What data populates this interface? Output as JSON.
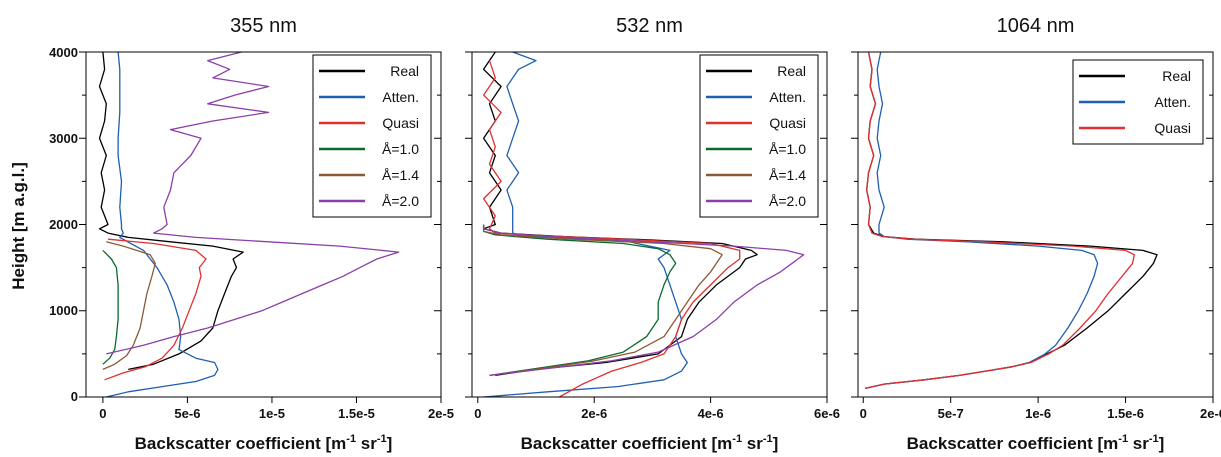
{
  "figure": {
    "ylabel": "Height [m a.g.l.]",
    "y_tick_labels": [
      "0",
      "1000",
      "2000",
      "3000",
      "4000"
    ]
  },
  "chart_data": [
    {
      "type": "line",
      "title": "355 nm",
      "xlabel_main": "Backscatter coefficient [m",
      "xlabel_sup1": "-1",
      "xlabel_mid": " sr",
      "xlabel_sup2": "-1",
      "xlabel_end": "]",
      "xlim": [
        -1e-06,
        2e-05
      ],
      "ylim": [
        0,
        4000
      ],
      "x_ticks": [
        0,
        5e-06,
        1e-05,
        1.5e-05,
        2e-05
      ],
      "x_tick_labels": [
        "0",
        "5e-6",
        "1e-5",
        "1.5e-5",
        "2e-5"
      ],
      "legend_position": "top-right",
      "series": [
        {
          "name": "Real",
          "color": "#000000",
          "y": [
            320,
            380,
            500,
            650,
            800,
            1000,
            1200,
            1400,
            1500,
            1600,
            1680,
            1750,
            1800,
            1850,
            1900,
            1950,
            2000,
            2200,
            2400,
            2600,
            2800,
            3000,
            3200,
            3400,
            3600,
            3800,
            4000
          ],
          "x": [
            1.5e-06,
            3e-06,
            4.5e-06,
            5.8e-06,
            6.5e-06,
            6.8e-06,
            7.2e-06,
            7.6e-06,
            7.9e-06,
            7.7e-06,
            8.3e-06,
            6.5e-06,
            4e-06,
            1.5e-06,
            3e-07,
            -2e-07,
            3e-07,
            -1e-07,
            1e-07,
            -1e-07,
            2e-07,
            -2e-07,
            1e-07,
            2e-07,
            -2e-07,
            1e-07,
            0
          ]
        },
        {
          "name": "Atten.",
          "color": "#1f5fb0",
          "y": [
            0,
            60,
            120,
            180,
            250,
            320,
            400,
            450,
            550,
            700,
            900,
            1100,
            1300,
            1500,
            1700,
            1850,
            1900,
            1950,
            2000,
            2200,
            2500,
            2800,
            3000,
            3300,
            3600,
            3800,
            4000
          ],
          "x": [
            2e-07,
            1.5e-06,
            3.5e-06,
            5.5e-06,
            6.6e-06,
            6.8e-06,
            6.6e-06,
            5.5e-06,
            4.5e-06,
            4.6e-06,
            4.5e-06,
            4.2e-06,
            3.8e-06,
            3.2e-06,
            2.4e-06,
            1e-06,
            1.2e-06,
            1.1e-06,
            1.1e-06,
            1e-06,
            1.1e-06,
            9e-07,
            9e-07,
            1e-06,
            1e-06,
            1e-06,
            9e-07
          ]
        },
        {
          "name": "Quasi",
          "color": "#e03030",
          "y": [
            200,
            280,
            350,
            450,
            600,
            800,
            1000,
            1200,
            1400,
            1500,
            1600,
            1700,
            1780,
            1830
          ],
          "x": [
            1e-07,
            1.2e-06,
            2.5e-06,
            3.5e-06,
            4.2e-06,
            4.7e-06,
            5.1e-06,
            5.5e-06,
            5.8e-06,
            5.7e-06,
            6.1e-06,
            5.5e-06,
            3e-06,
            3e-07
          ]
        },
        {
          "name": "Å=1.0",
          "color": "#0a6a2e",
          "y": [
            380,
            450,
            550,
            700,
            900,
            1100,
            1300,
            1500,
            1600,
            1700
          ],
          "x": [
            0,
            4e-07,
            7e-07,
            8e-07,
            9e-07,
            9e-07,
            9e-07,
            8e-07,
            5e-07,
            0
          ]
        },
        {
          "name": "Å=1.4",
          "color": "#8a5a35",
          "y": [
            320,
            380,
            480,
            600,
            800,
            1000,
            1200,
            1400,
            1550,
            1650,
            1750,
            1800
          ],
          "x": [
            0,
            7e-07,
            1.4e-06,
            1.8e-06,
            2.2e-06,
            2.4e-06,
            2.6e-06,
            2.9e-06,
            3.1e-06,
            2.8e-06,
            1.2e-06,
            2e-07
          ]
        },
        {
          "name": "Å=2.0",
          "color": "#8b3fa8",
          "y": [
            500,
            600,
            700,
            800,
            900,
            1000,
            1100,
            1200,
            1300,
            1400,
            1500,
            1600,
            1680,
            1750,
            1800,
            1850,
            1900,
            1950,
            2000,
            2200,
            2400,
            2600,
            2800,
            3000,
            3100,
            3200,
            3300,
            3400,
            3500,
            3600,
            3700,
            3800,
            3900,
            4000
          ],
          "x": [
            2e-07,
            2.4e-06,
            4.2e-06,
            6.2e-06,
            7.8e-06,
            9.4e-06,
            1.06e-05,
            1.18e-05,
            1.3e-05,
            1.42e-05,
            1.52e-05,
            1.62e-05,
            1.75e-05,
            1.4e-05,
            9.8e-06,
            5.5e-06,
            3e-06,
            3.5e-06,
            3.8e-06,
            3.6e-06,
            4e-06,
            4.2e-06,
            5.2e-06,
            5.8e-06,
            4e-06,
            6.5e-06,
            9.8e-06,
            6.2e-06,
            7.8e-06,
            9.8e-06,
            6.5e-06,
            7.5e-06,
            6.2e-06,
            8.2e-06
          ]
        }
      ]
    },
    {
      "type": "line",
      "title": "532 nm",
      "xlabel_main": "Backscatter coefficient [m",
      "xlabel_sup1": "-1",
      "xlabel_mid": " sr",
      "xlabel_sup2": "-1",
      "xlabel_end": "]",
      "xlim": [
        -1e-07,
        6e-06
      ],
      "ylim": [
        0,
        4000
      ],
      "x_ticks": [
        0,
        2e-06,
        4e-06,
        6e-06
      ],
      "x_tick_labels": [
        "0",
        "2e-6",
        "4e-6",
        "6e-6"
      ],
      "legend_position": "top-right",
      "series": [
        {
          "name": "Real",
          "color": "#000000",
          "y": [
            250,
            320,
            400,
            500,
            700,
            900,
            1100,
            1300,
            1500,
            1600,
            1650,
            1700,
            1780,
            1820,
            1860,
            1900,
            1950,
            2000,
            2200,
            2400,
            2600,
            2800,
            3000,
            3200,
            3400,
            3600,
            3800,
            4000
          ],
          "x": [
            3e-07,
            1e-06,
            2.2e-06,
            3.1e-06,
            3.5e-06,
            3.6e-06,
            3.8e-06,
            4.1e-06,
            4.5e-06,
            4.6e-06,
            4.8e-06,
            4.7e-06,
            4.2e-06,
            3e-06,
            1.5e-06,
            4e-07,
            1e-07,
            3e-07,
            2e-07,
            4e-07,
            2e-07,
            3e-07,
            1e-07,
            3e-07,
            2e-07,
            4e-07,
            1e-07,
            3e-07
          ]
        },
        {
          "name": "Atten.",
          "color": "#1f5fb0",
          "y": [
            0,
            60,
            120,
            200,
            300,
            400,
            500,
            700,
            900,
            1100,
            1300,
            1500,
            1600,
            1700,
            1800,
            1850,
            1880,
            1900,
            1950,
            2000,
            2200,
            2400,
            2600,
            2800,
            3000,
            3200,
            3400,
            3600,
            3800,
            3900,
            4000
          ],
          "x": [
            1e-07,
            1.2e-06,
            2.4e-06,
            3.2e-06,
            3.5e-06,
            3.6e-06,
            3.5e-06,
            3.4e-06,
            3.5e-06,
            3.4e-06,
            3.3e-06,
            3.2e-06,
            3.1e-06,
            3.3e-06,
            2.6e-06,
            1.4e-06,
            7e-07,
            6e-07,
            6e-07,
            6e-07,
            6e-07,
            5e-07,
            7e-07,
            5e-07,
            6e-07,
            7e-07,
            6e-07,
            5e-07,
            7e-07,
            1e-06,
            6e-07
          ]
        },
        {
          "name": "Quasi",
          "color": "#e03030",
          "y": [
            0,
            150,
            300,
            400,
            500,
            700,
            900,
            1100,
            1300,
            1500,
            1600,
            1700,
            1780,
            1830,
            1880,
            1900,
            1950,
            2100,
            2300,
            2500,
            2700,
            2900,
            3100,
            3300,
            3500,
            3700,
            3900
          ],
          "x": [
            1.4e-06,
            1.8e-06,
            2.3e-06,
            2.8e-06,
            3.2e-06,
            3.4e-06,
            3.5e-06,
            3.7e-06,
            4e-06,
            4.3e-06,
            4.5e-06,
            4.5e-06,
            4e-06,
            2.5e-06,
            8e-07,
            3e-07,
            2e-07,
            3e-07,
            1e-07,
            4e-07,
            2e-07,
            3e-07,
            2e-07,
            4e-07,
            1e-07,
            3e-07,
            2e-07
          ]
        },
        {
          "name": "Å=1.0",
          "color": "#0a6a2e",
          "y": [
            250,
            330,
            420,
            520,
            700,
            900,
            1100,
            1300,
            1450,
            1550,
            1650,
            1720,
            1780,
            1830,
            1880,
            1920,
            2000
          ],
          "x": [
            2e-07,
            1e-06,
            1.9e-06,
            2.5e-06,
            2.9e-06,
            3.1e-06,
            3.1e-06,
            3.2e-06,
            3.3e-06,
            3.4e-06,
            3.3e-06,
            3.1e-06,
            2.5e-06,
            1.2e-06,
            3e-07,
            1e-07,
            1e-07
          ]
        },
        {
          "name": "Å=1.4",
          "color": "#8a5a35",
          "y": [
            250,
            330,
            420,
            520,
            700,
            900,
            1100,
            1300,
            1450,
            1550,
            1650,
            1720,
            1780,
            1830,
            1880,
            1920,
            2000
          ],
          "x": [
            2e-07,
            1.1e-06,
            2e-06,
            2.7e-06,
            3.2e-06,
            3.4e-06,
            3.6e-06,
            3.8e-06,
            4e-06,
            4.1e-06,
            4.2e-06,
            4e-06,
            3.2e-06,
            1.6e-06,
            4e-07,
            1e-07,
            1e-07
          ]
        },
        {
          "name": "Å=2.0",
          "color": "#8b3fa8",
          "y": [
            250,
            330,
            420,
            520,
            700,
            900,
            1100,
            1300,
            1450,
            1550,
            1600,
            1650,
            1700,
            1750,
            1800,
            1850,
            1900,
            1950,
            2000
          ],
          "x": [
            2e-07,
            1.2e-06,
            2.3e-06,
            3.1e-06,
            3.7e-06,
            4.1e-06,
            4.4e-06,
            4.8e-06,
            5.2e-06,
            5.4e-06,
            5.5e-06,
            5.6e-06,
            5.3e-06,
            4.4e-06,
            3e-06,
            1.5e-06,
            4e-07,
            1e-07,
            1e-07
          ]
        }
      ]
    },
    {
      "type": "line",
      "title": "1064 nm",
      "xlabel_main": "Backscatter coefficient [m",
      "xlabel_sup1": "-1",
      "xlabel_mid": " sr",
      "xlabel_sup2": "-1",
      "xlabel_end": "]",
      "xlim": [
        -3e-08,
        2e-06
      ],
      "ylim": [
        0,
        4000
      ],
      "x_ticks": [
        0,
        5e-07,
        1e-06,
        1.5e-06,
        2e-06
      ],
      "x_tick_labels": [
        "0",
        "5e-7",
        "1e-6",
        "1.5e-6",
        "2e-6"
      ],
      "legend_position": "top-right",
      "series": [
        {
          "name": "Real",
          "color": "#000000",
          "y": [
            100,
            150,
            200,
            250,
            300,
            350,
            400,
            500,
            600,
            800,
            1000,
            1200,
            1400,
            1550,
            1650,
            1700,
            1750,
            1800,
            1830,
            1860,
            1900,
            2000,
            2200,
            2400,
            2600,
            2800,
            3000,
            3200,
            3400,
            3600,
            3800,
            4000
          ],
          "x": [
            1e-08,
            1.2e-07,
            3.5e-07,
            5.5e-07,
            7e-07,
            8.5e-07,
            9.5e-07,
            1.05e-06,
            1.15e-06,
            1.28e-06,
            1.4e-06,
            1.5e-06,
            1.6e-06,
            1.66e-06,
            1.68e-06,
            1.6e-06,
            1.3e-06,
            8e-07,
            3e-07,
            1.2e-07,
            6e-08,
            3e-08,
            4e-08,
            2e-08,
            3e-08,
            6e-08,
            3e-08,
            4e-08,
            7e-08,
            4e-08,
            5e-08,
            3e-08
          ]
        },
        {
          "name": "Atten.",
          "color": "#1f5fb0",
          "y": [
            100,
            150,
            200,
            250,
            300,
            350,
            400,
            500,
            600,
            800,
            1000,
            1200,
            1400,
            1550,
            1650,
            1700,
            1750,
            1800,
            1830,
            1860,
            1900,
            2000,
            2200,
            2400,
            2600,
            2800,
            3000,
            3200,
            3400,
            3600,
            3800,
            4000
          ],
          "x": [
            1e-08,
            1.2e-07,
            3.5e-07,
            5.5e-07,
            7e-07,
            8.5e-07,
            9.5e-07,
            1.04e-06,
            1.1e-06,
            1.17e-06,
            1.23e-06,
            1.28e-06,
            1.32e-06,
            1.34e-06,
            1.32e-06,
            1.25e-06,
            1e-06,
            6e-07,
            2.5e-07,
            1.2e-07,
            9e-08,
            9e-08,
            1.2e-07,
            9e-08,
            8e-08,
            1e-07,
            8e-08,
            9e-08,
            1.1e-07,
            9e-08,
            8e-08,
            1e-07
          ]
        },
        {
          "name": "Quasi",
          "color": "#e03030",
          "y": [
            100,
            150,
            200,
            250,
            300,
            350,
            400,
            500,
            600,
            800,
            1000,
            1200,
            1400,
            1550,
            1650,
            1700,
            1750,
            1800,
            1830,
            1860,
            1900,
            2000,
            2200,
            2400,
            2600,
            2800,
            3000,
            3200,
            3400,
            3600,
            3800,
            4000
          ],
          "x": [
            1e-08,
            1.2e-07,
            3.5e-07,
            5.5e-07,
            7e-07,
            8.5e-07,
            9.6e-07,
            1.06e-06,
            1.14e-06,
            1.24e-06,
            1.33e-06,
            1.4e-06,
            1.48e-06,
            1.54e-06,
            1.55e-06,
            1.5e-06,
            1.2e-06,
            7e-07,
            2.8e-07,
            1.1e-07,
            5e-08,
            3e-08,
            4e-08,
            2e-08,
            3e-08,
            6e-08,
            3e-08,
            4e-08,
            7e-08,
            4e-08,
            5e-08,
            3e-08
          ]
        }
      ]
    }
  ]
}
